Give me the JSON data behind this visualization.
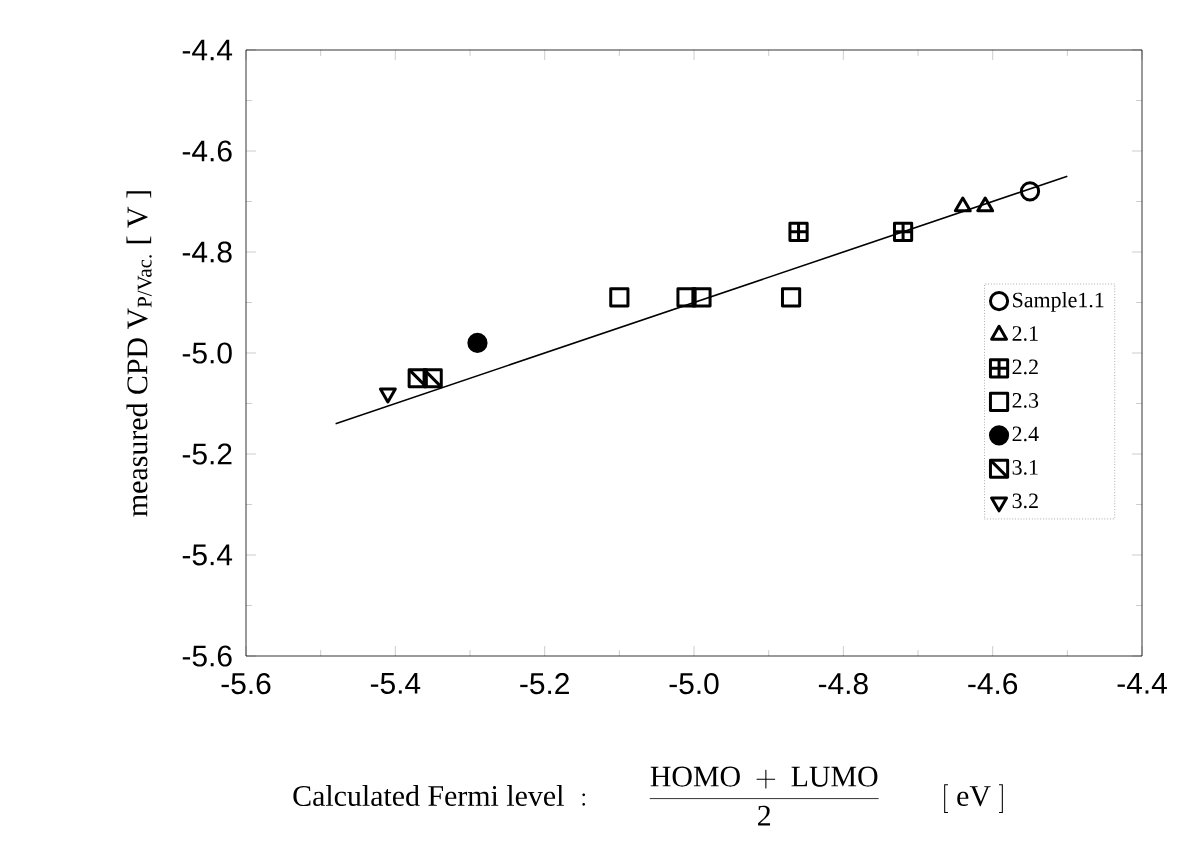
{
  "chart_data": {
    "type": "scatter",
    "xlabel": "\\mathrm{Calculated\\ Fermi\\ level\\ :}\\qquad\\frac{\\mathrm{HOMO\\ +\\ LUMO}}{\\mathrm{2}}\\qquad\\mathrm{[\\ eV\\ ]}",
    "ylabel": "measured CPD V$_{P/Vac.}$ [ V ]",
    "xlim": [
      -5.6,
      -4.4
    ],
    "ylim": [
      -5.6,
      -4.4
    ],
    "xticks": [
      -5.6,
      -5.4,
      -5.2,
      {
        "value": -5.0,
        "label": "-5.0"
      },
      -4.8,
      -4.6,
      -4.4
    ],
    "yticks": [
      -5.6,
      -5.4,
      -5.2,
      {
        "value": -5.0,
        "label": "-5.0"
      },
      -4.8,
      -4.6,
      -4.4
    ],
    "grid": false,
    "legend": "right",
    "series": [
      {
        "type": "line",
        "color": "#000000",
        "marker": "none",
        "x": [
          -5.48,
          -4.5
        ],
        "values": [
          -5.14,
          -4.65
        ]
      },
      {
        "name": "Sample1.1",
        "color": "#000000",
        "marker": "circle",
        "x": [
          -4.55
        ],
        "values": [
          -4.68
        ]
      },
      {
        "name": "2.1",
        "color": "#000000",
        "marker": "triangle",
        "x": [
          -4.64,
          -4.61
        ],
        "values": [
          -4.71,
          -4.71
        ]
      },
      {
        "name": "2.2",
        "color": "#000000",
        "marker": "square-plus",
        "x": [
          -4.86,
          -4.72
        ],
        "values": [
          -4.76,
          -4.76
        ]
      },
      {
        "name": "2.3",
        "color": "#000000",
        "marker": "square",
        "x": [
          -5.1,
          -5.01,
          -4.99,
          -4.87
        ],
        "values": [
          -4.89,
          -4.89,
          -4.89,
          -4.89
        ]
      },
      {
        "name": "2.4",
        "color": "#000000",
        "marker": "circle-filled",
        "x": [
          -5.29
        ],
        "values": [
          -4.98
        ]
      },
      {
        "name": "3.1",
        "color": "#000000",
        "marker": "square-diagonal",
        "x": [
          -5.37,
          -5.35
        ],
        "values": [
          -5.05,
          -5.05
        ]
      },
      {
        "name": "3.2",
        "color": "#000000",
        "marker": "triangle-down",
        "x": [
          -5.41
        ],
        "values": [
          -5.08
        ]
      }
    ]
  }
}
